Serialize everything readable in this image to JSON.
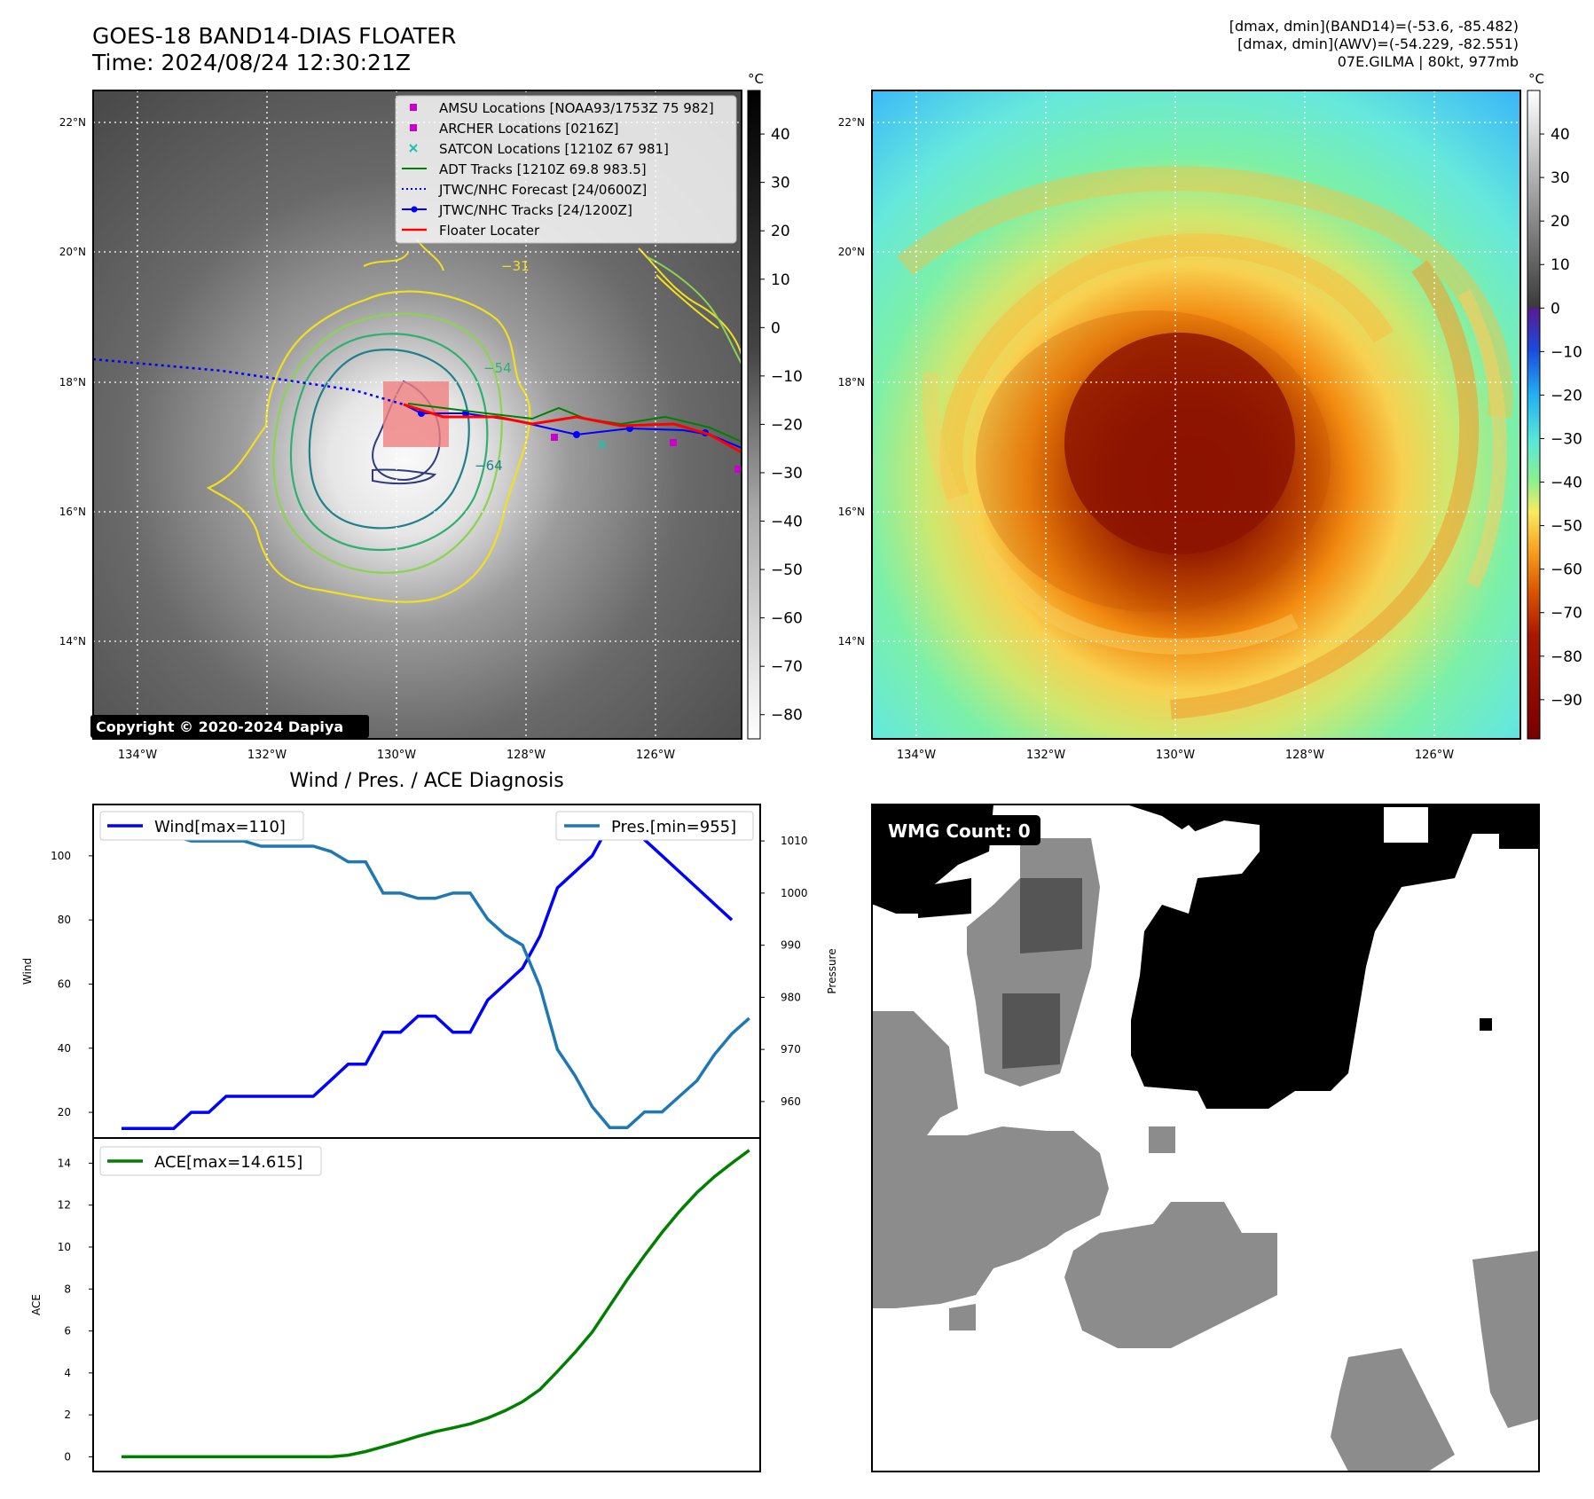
{
  "header": {
    "title_line1": "GOES-18 BAND14-DIAS FLOATER",
    "title_line2": "Time: 2024/08/24 12:30:21Z",
    "info_line1": "[dmax, dmin](BAND14)=(-53.6, -85.482)",
    "info_line2": "[dmax, dmin](AWV)=(-54.229, -82.551)",
    "info_line3": "07E.GILMA | 80kt, 977mb"
  },
  "maps": {
    "lat_labels": [
      "22°N",
      "20°N",
      "18°N",
      "16°N",
      "14°N"
    ],
    "lat_values": [
      22,
      20,
      18,
      16,
      14
    ],
    "lon_labels": [
      "134°W",
      "132°W",
      "130°W",
      "128°W",
      "126°W"
    ],
    "lon_values": [
      -134,
      -132,
      -130,
      -128,
      -126
    ],
    "extent": {
      "lon_min": -134.7,
      "lon_max": -124.7,
      "lat_min": 12.6,
      "lat_max": 22.5
    },
    "colorbar_unit": "°C",
    "left_colorbar_ticks": [
      "40",
      "30",
      "20",
      "10",
      "0",
      "−10",
      "−20",
      "−30",
      "−40",
      "−50",
      "−60",
      "−70",
      "−80"
    ],
    "left_colorbar_range": [
      49,
      -85
    ],
    "right_colorbar_ticks": [
      "40",
      "30",
      "20",
      "10",
      "0",
      "−10",
      "−20",
      "−30",
      "−40",
      "−50",
      "−60",
      "−70",
      "−80",
      "−90"
    ],
    "right_colorbar_range": [
      50,
      -99
    ],
    "copyright": "Copyright © 2020-2024 Dapiya",
    "contour_labels": [
      "−31",
      "−54",
      "−64"
    ],
    "colors": {
      "jtwc": "#0000ff",
      "adt": "#008000",
      "floater": "#ff0000",
      "amsu": "#cc00cc",
      "satcon": "#20c0b0"
    }
  },
  "legend": [
    {
      "label": "AMSU Locations [NOAA93/1753Z 75 982]",
      "marker": "square",
      "color": "#cc00cc"
    },
    {
      "label": "ARCHER Locations [0216Z]",
      "marker": "square",
      "color": "#cc00cc"
    },
    {
      "label": "SATCON Locations [1210Z 67 981]",
      "marker": "x",
      "color": "#20c0b0"
    },
    {
      "label": "ADT Tracks [1210Z 69.8 983.5]",
      "marker": "line",
      "color": "#008000"
    },
    {
      "label": "JTWC/NHC Forecast [24/0600Z]",
      "marker": "dotted",
      "color": "#0000ff"
    },
    {
      "label": "JTWC/NHC Tracks [24/1200Z]",
      "marker": "line-dot",
      "color": "#0000ff"
    },
    {
      "label": "Floater Locater",
      "marker": "line",
      "color": "#ff0000"
    }
  ],
  "diagnosis": {
    "title": "Wind / Pres. / ACE Diagnosis",
    "wind_ylabel": "Wind",
    "pres_ylabel": "Pressure",
    "ace_ylabel": "ACE",
    "wind_legend": "Wind[max=110]",
    "pres_legend": "Pres.[min=955]",
    "ace_legend": "ACE[max=14.615]",
    "wind_ticks": [
      "20",
      "40",
      "60",
      "80",
      "100"
    ],
    "pres_ticks": [
      "960",
      "970",
      "980",
      "990",
      "1000",
      "1010"
    ],
    "ace_ticks": [
      "0",
      "2",
      "4",
      "6",
      "8",
      "10",
      "12",
      "14"
    ]
  },
  "wmg": {
    "count_label": "WMG Count: 0"
  },
  "chart_data": [
    {
      "type": "line",
      "title": "Wind / Pres. / ACE Diagnosis",
      "x": [
        0,
        1,
        2,
        3,
        4,
        5,
        6,
        7,
        8,
        9,
        10,
        11,
        12,
        13,
        14,
        15,
        16,
        17,
        18,
        19,
        20,
        21,
        22,
        23,
        24,
        25,
        26,
        27,
        28,
        29,
        30,
        31,
        32,
        33,
        34,
        35,
        36,
        37,
        38
      ],
      "series": [
        {
          "name": "Wind[max=110]",
          "axis": "wind",
          "color": "#0000ff",
          "values": [
            15,
            15,
            15,
            15,
            20,
            20,
            25,
            25,
            25,
            25,
            25,
            25,
            30,
            35,
            35,
            45,
            45,
            50,
            50,
            45,
            45,
            55,
            60,
            65,
            75,
            90,
            95,
            100,
            110,
            110,
            105,
            100,
            95,
            90,
            85,
            80,
            null,
            null,
            null
          ]
        },
        {
          "name": "Pres.[min=955]",
          "axis": "pres",
          "color": "#1f77b4",
          "values": [
            1015,
            1012,
            1011,
            1011,
            1010,
            1010,
            1010,
            1010,
            1009,
            1009,
            1009,
            1009,
            1008,
            1006,
            1006,
            1000,
            1000,
            999,
            999,
            1000,
            1000,
            995,
            992,
            990,
            982,
            970,
            965,
            959,
            955,
            955,
            958,
            958,
            961,
            964,
            969,
            973,
            976,
            null,
            null
          ]
        },
        {
          "name": "ACE[max=14.615]",
          "axis": "ace",
          "color": "#008000",
          "values": [
            0,
            0,
            0,
            0,
            0,
            0,
            0,
            0,
            0,
            0,
            0,
            0,
            0,
            0.08,
            0.25,
            0.48,
            0.72,
            0.98,
            1.2,
            1.38,
            1.57,
            1.85,
            2.2,
            2.63,
            3.21,
            4.07,
            4.97,
            5.95,
            7.2,
            8.45,
            9.6,
            10.7,
            11.7,
            12.6,
            13.35,
            14.0,
            14.615,
            null,
            null
          ]
        }
      ],
      "wind_ylim": [
        12,
        116
      ],
      "pres_ylim": [
        953,
        1017
      ],
      "ace_ylim": [
        -0.7,
        15.2
      ]
    }
  ]
}
